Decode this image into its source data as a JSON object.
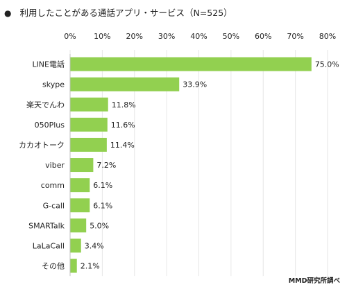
{
  "chart_data": {
    "type": "bar",
    "orientation": "horizontal",
    "title_bullet": "●",
    "title": "利用したことがある通話アプリ・サービス（N=525）",
    "categories": [
      "LINE電話",
      "skype",
      "楽天でんわ",
      "050Plus",
      "カカオトーク",
      "viber",
      "comm",
      "G-call",
      "SMARTalk",
      "LaLaCall",
      "その他"
    ],
    "values": [
      75.0,
      33.9,
      11.8,
      11.6,
      11.4,
      7.2,
      6.1,
      6.1,
      5.0,
      3.4,
      2.1
    ],
    "value_labels": [
      "75.0%",
      "33.9%",
      "11.8%",
      "11.6%",
      "11.4%",
      "7.2%",
      "6.1%",
      "6.1%",
      "5.0%",
      "3.4%",
      "2.1%"
    ],
    "xlim": [
      0,
      80
    ],
    "x_ticks": [
      0,
      10,
      20,
      30,
      40,
      50,
      60,
      70,
      80
    ],
    "x_tick_labels": [
      "0%",
      "10%",
      "20%",
      "30%",
      "40%",
      "50%",
      "60%",
      "70%",
      "80%"
    ],
    "xlabel": "",
    "ylabel": "",
    "grid": true,
    "legend": false,
    "bar_color": "#92d050",
    "grid_color": "#e6e6e6",
    "source": "MMD研究所調べ"
  }
}
